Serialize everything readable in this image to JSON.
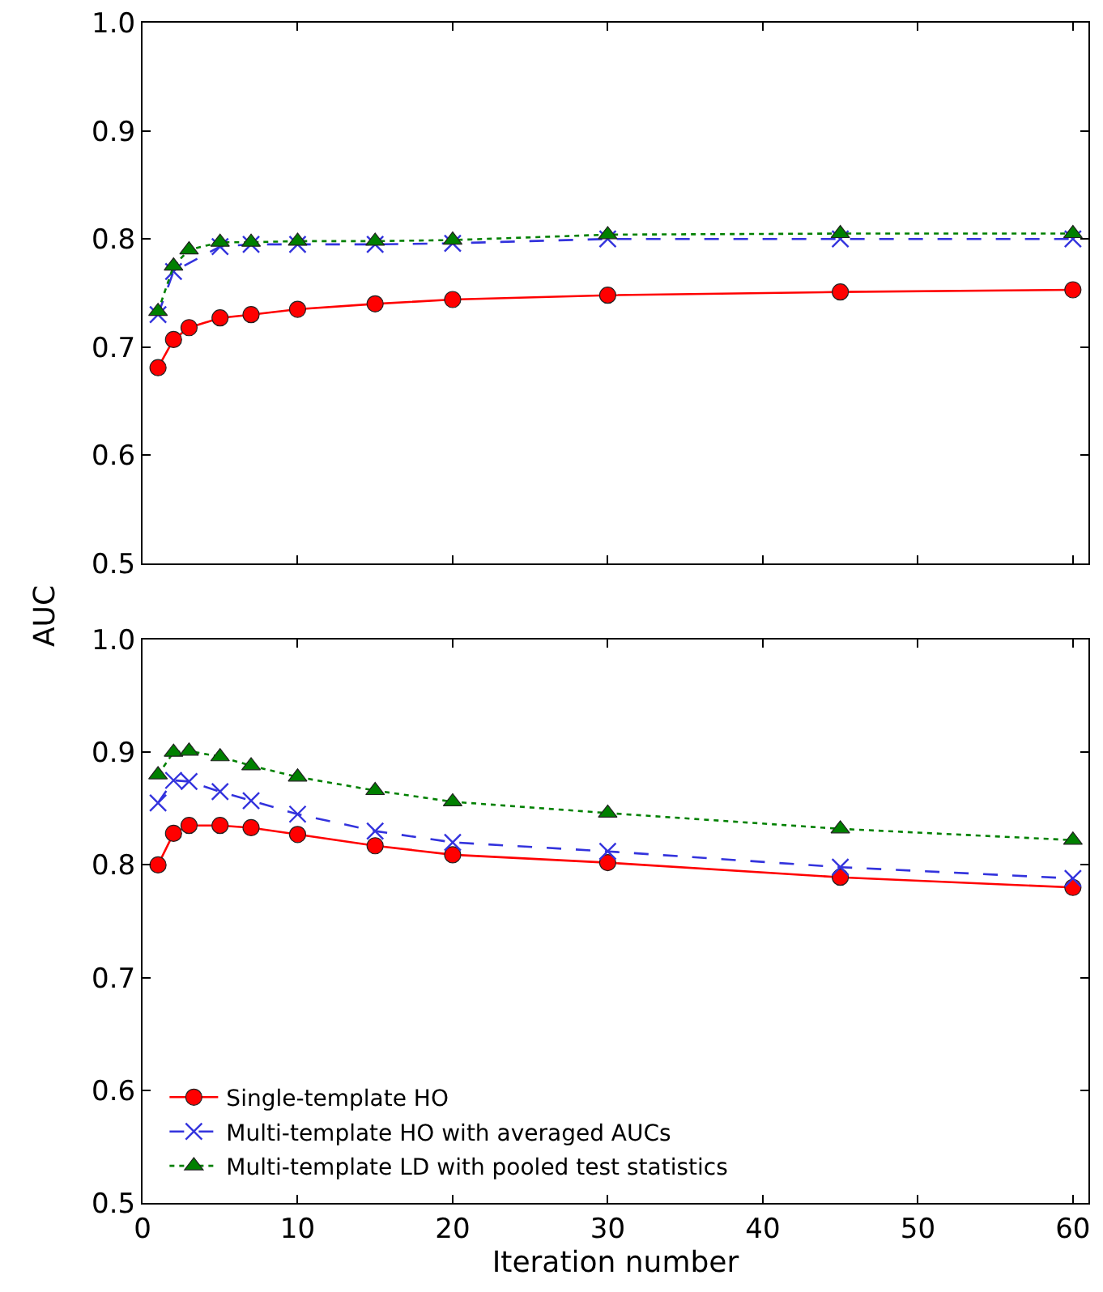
{
  "chart_data": [
    {
      "type": "line",
      "ylabel": "AUC",
      "x": [
        1,
        2,
        3,
        5,
        7,
        10,
        15,
        20,
        30,
        45,
        60
      ],
      "xlim": [
        0,
        61
      ],
      "xticks": [
        0,
        10,
        20,
        30,
        40,
        50,
        60
      ],
      "ylim": [
        0.5,
        1.0
      ],
      "yticks": [
        {
          "value": 0.5,
          "label": "0.5"
        },
        {
          "value": 0.6,
          "label": "0.6"
        },
        {
          "value": 0.7,
          "label": "0.7"
        },
        {
          "value": 0.8,
          "label": "0.8"
        },
        {
          "value": 0.9,
          "label": "0.9"
        },
        {
          "value": 1.0,
          "label": "1.0"
        }
      ],
      "tick_labels": "y",
      "grid": false,
      "legend": false,
      "series": [
        {
          "color": "#ff0000",
          "marker": "circle",
          "line_style": "solid",
          "values": [
            0.681,
            0.707,
            0.718,
            0.727,
            0.73,
            0.735,
            0.74,
            0.744,
            0.748,
            0.751,
            0.753
          ]
        },
        {
          "color": "#3333dd",
          "marker": "cross",
          "line_style": "dashed",
          "values": [
            0.73,
            0.77,
            null,
            0.793,
            0.795,
            0.795,
            0.795,
            0.796,
            0.8,
            0.8,
            0.8
          ]
        },
        {
          "color": "#008000",
          "marker": "triangle",
          "line_style": "dotted",
          "values": [
            0.733,
            0.775,
            0.79,
            0.797,
            0.797,
            0.798,
            0.798,
            0.799,
            0.804,
            0.805,
            0.805
          ]
        }
      ]
    },
    {
      "type": "line",
      "xlabel": "Iteration number",
      "x": [
        1,
        2,
        3,
        5,
        7,
        10,
        15,
        20,
        30,
        45,
        60
      ],
      "xlim": [
        0,
        61
      ],
      "xticks": [
        0,
        10,
        20,
        30,
        40,
        50,
        60
      ],
      "ylim": [
        0.5,
        1.0
      ],
      "yticks": [
        {
          "value": 0.5,
          "label": "0.5"
        },
        {
          "value": 0.6,
          "label": "0.6"
        },
        {
          "value": 0.7,
          "label": "0.7"
        },
        {
          "value": 0.8,
          "label": "0.8"
        },
        {
          "value": 0.9,
          "label": "0.9"
        },
        {
          "value": 1.0,
          "label": "1.0"
        }
      ],
      "grid": false,
      "legend": "bottom left",
      "series": [
        {
          "name": "Single-template HO",
          "color": "#ff0000",
          "marker": "circle",
          "line_style": "solid",
          "values": [
            0.8,
            0.828,
            0.835,
            0.835,
            0.833,
            0.827,
            0.817,
            0.809,
            0.802,
            0.789,
            0.78
          ]
        },
        {
          "name": "Multi-template HO with averaged AUCs",
          "color": "#3333dd",
          "marker": "cross",
          "line_style": "dashed",
          "values": [
            0.855,
            0.875,
            0.874,
            0.865,
            0.857,
            0.845,
            0.83,
            0.82,
            0.812,
            0.798,
            0.788
          ]
        },
        {
          "name": "Multi-template LD with pooled test statistics",
          "color": "#008000",
          "marker": "triangle",
          "line_style": "dotted",
          "values": [
            0.88,
            0.9,
            0.901,
            0.896,
            0.888,
            0.878,
            0.866,
            0.856,
            0.846,
            0.832,
            0.822
          ]
        }
      ]
    }
  ]
}
